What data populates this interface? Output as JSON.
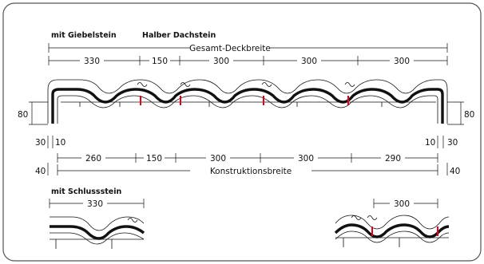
{
  "labels": {
    "gable": "mit Giebelstein",
    "half": "Halber Dachstein",
    "total_width": "Gesamt-Deckbreite",
    "construction_width": "Konstruktionsbreite",
    "end_stone": "mit Schlussstein"
  },
  "dims": {
    "top": [
      "330",
      "150",
      "300",
      "300",
      "300"
    ],
    "bottom": [
      "260",
      "150",
      "300",
      "300",
      "290"
    ],
    "left_height": "80",
    "right_height": "80",
    "left_30": "30",
    "left_10": "10",
    "right_10": "10",
    "right_30": "30",
    "left_40": "40",
    "right_40": "40",
    "end_left": "330",
    "end_right": "300"
  }
}
